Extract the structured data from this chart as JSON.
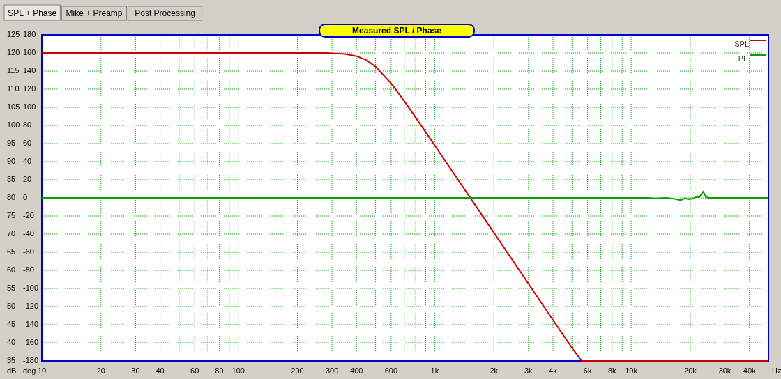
{
  "chart_data": {
    "type": "line",
    "title": "Measured SPL / Phase",
    "xlabel": "Hz",
    "ylabel": "dB",
    "y2label": "deg",
    "annotations": [
      "SPL + Phase",
      "Mike + Preamp",
      "Post Processing"
    ],
    "log": "x",
    "grid": true,
    "legend": "top right",
    "line_style": "solid",
    "xlim": [
      10,
      50000
    ],
    "xticks": [
      10,
      20,
      30,
      40,
      {
        "value": 50,
        "label": null
      },
      60,
      {
        "value": 70,
        "label": null
      },
      80,
      {
        "value": 90,
        "label": null
      },
      100,
      200,
      300,
      400,
      {
        "value": 500,
        "label": null
      },
      600,
      {
        "value": 700,
        "label": null
      },
      {
        "value": 800,
        "label": null
      },
      {
        "value": 900,
        "label": null
      },
      {
        "value": 1000,
        "label": "1k"
      },
      {
        "value": 2000,
        "label": "2k"
      },
      {
        "value": 3000,
        "label": "3k"
      },
      {
        "value": 4000,
        "label": "4k"
      },
      {
        "value": 5000,
        "label": null
      },
      {
        "value": 6000,
        "label": "6k"
      },
      {
        "value": 7000,
        "label": null
      },
      {
        "value": 8000,
        "label": "8k"
      },
      {
        "value": 9000,
        "label": null
      },
      {
        "value": 10000,
        "label": "10k"
      },
      {
        "value": 20000,
        "label": "20k"
      },
      {
        "value": 30000,
        "label": "30k"
      },
      {
        "value": 40000,
        "label": "40k"
      }
    ],
    "ylim": [
      35,
      125
    ],
    "yticks": [
      35,
      40,
      45,
      50,
      55,
      60,
      65,
      70,
      75,
      80,
      85,
      90,
      95,
      100,
      105,
      110,
      115,
      120,
      125
    ],
    "y2lim": [
      -180,
      180
    ],
    "y2ticks": [
      -180,
      -160,
      -140,
      -120,
      -100,
      -80,
      -60,
      -40,
      -20,
      0,
      20,
      40,
      60,
      80,
      100,
      120,
      140,
      160,
      180
    ],
    "series": [
      {
        "name": "SPL",
        "color": "#cc0000",
        "x": [
          10,
          280,
          350,
          400,
          450,
          500,
          600,
          700,
          800,
          1000,
          1500,
          2000,
          3000,
          4000,
          5000,
          5600,
          50000
        ],
        "values": [
          120,
          120,
          119.7,
          119.1,
          118,
          116.2,
          111.6,
          106.7,
          102.2,
          94.5,
          80.4,
          70.4,
          56.3,
          46.3,
          38.6,
          35,
          35
        ]
      },
      {
        "name": "PH",
        "color": "#00a000",
        "axis": "y2",
        "x": [
          10,
          12000,
          13500,
          15000,
          16500,
          17900,
          18800,
          19600,
          20500,
          21500,
          22200,
          23300,
          24000,
          25000,
          50000
        ],
        "values": [
          0,
          0,
          -0.5,
          0,
          -1,
          -2.5,
          -0.5,
          -1.5,
          -1,
          1,
          0.5,
          7,
          1,
          0,
          0
        ]
      }
    ]
  }
}
